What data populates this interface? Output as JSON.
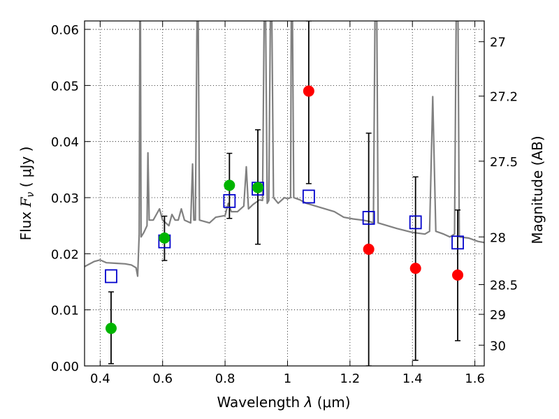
{
  "chart_data": {
    "type": "scatter",
    "xlabel": "Wavelength",
    "xlabel_symbol": "λ",
    "xlabel_unit": "(μm)",
    "ylabel": "Flux",
    "ylabel_symbol": "F",
    "ylabel_subscript": "ν",
    "ylabel_unit": "( μJy )",
    "y2label": "Magnitude (AB)",
    "xlim": [
      0.35,
      1.63
    ],
    "ylim": [
      0.0,
      0.0615
    ],
    "grid": true,
    "x_ticks": [
      0.4,
      0.6,
      0.8,
      1.0,
      1.2,
      1.4,
      1.6
    ],
    "x_tick_labels": [
      "0.4",
      "0.6",
      "0.8",
      "1",
      "1.2",
      "1.4",
      "1.6"
    ],
    "y_ticks": [
      0.0,
      0.01,
      0.02,
      0.03,
      0.04,
      0.05,
      0.06
    ],
    "y_tick_labels": [
      "0.00",
      "0.01",
      "0.02",
      "0.03",
      "0.04",
      "0.05",
      "0.06"
    ],
    "y2_ticks": [
      {
        "label": "27",
        "flux": 0.0578
      },
      {
        "label": "27.2",
        "flux": 0.0481
      },
      {
        "label": "27.5",
        "flux": 0.0365
      },
      {
        "label": "28",
        "flux": 0.023
      },
      {
        "label": "28.5",
        "flux": 0.0145
      },
      {
        "label": "29",
        "flux": 0.0092
      },
      {
        "label": "30",
        "flux": 0.0037
      }
    ],
    "model_spectrum": {
      "color": "#808080",
      "points": [
        [
          0.35,
          0.0177
        ],
        [
          0.38,
          0.0186
        ],
        [
          0.4,
          0.0189
        ],
        [
          0.42,
          0.0184
        ],
        [
          0.45,
          0.0183
        ],
        [
          0.48,
          0.0182
        ],
        [
          0.5,
          0.018
        ],
        [
          0.515,
          0.0175
        ],
        [
          0.52,
          0.016
        ],
        [
          0.525,
          0.0235
        ],
        [
          0.527,
          0.0615
        ],
        [
          0.529,
          0.0615
        ],
        [
          0.531,
          0.023
        ],
        [
          0.54,
          0.0238
        ],
        [
          0.55,
          0.025
        ],
        [
          0.553,
          0.038
        ],
        [
          0.557,
          0.026
        ],
        [
          0.57,
          0.026
        ],
        [
          0.58,
          0.027
        ],
        [
          0.59,
          0.028
        ],
        [
          0.6,
          0.026
        ],
        [
          0.62,
          0.025
        ],
        [
          0.63,
          0.027
        ],
        [
          0.64,
          0.026
        ],
        [
          0.65,
          0.026
        ],
        [
          0.66,
          0.028
        ],
        [
          0.67,
          0.026
        ],
        [
          0.69,
          0.0255
        ],
        [
          0.696,
          0.036
        ],
        [
          0.7,
          0.026
        ],
        [
          0.705,
          0.026
        ],
        [
          0.71,
          0.0615
        ],
        [
          0.714,
          0.0615
        ],
        [
          0.718,
          0.026
        ],
        [
          0.75,
          0.0255
        ],
        [
          0.77,
          0.0265
        ],
        [
          0.8,
          0.0268
        ],
        [
          0.81,
          0.029
        ],
        [
          0.82,
          0.0275
        ],
        [
          0.84,
          0.0275
        ],
        [
          0.86,
          0.0285
        ],
        [
          0.868,
          0.0355
        ],
        [
          0.875,
          0.028
        ],
        [
          0.89,
          0.0288
        ],
        [
          0.9,
          0.0292
        ],
        [
          0.91,
          0.0296
        ],
        [
          0.92,
          0.0295
        ],
        [
          0.925,
          0.0615
        ],
        [
          0.93,
          0.0615
        ],
        [
          0.935,
          0.029
        ],
        [
          0.94,
          0.0295
        ],
        [
          0.945,
          0.0615
        ],
        [
          0.95,
          0.0615
        ],
        [
          0.955,
          0.03
        ],
        [
          0.97,
          0.029
        ],
        [
          0.99,
          0.03
        ],
        [
          1.0,
          0.0298
        ],
        [
          1.01,
          0.03
        ],
        [
          1.012,
          0.0615
        ],
        [
          1.016,
          0.0615
        ],
        [
          1.02,
          0.03
        ],
        [
          1.04,
          0.0296
        ],
        [
          1.06,
          0.029
        ],
        [
          1.09,
          0.0285
        ],
        [
          1.12,
          0.028
        ],
        [
          1.15,
          0.0275
        ],
        [
          1.18,
          0.0265
        ],
        [
          1.21,
          0.0262
        ],
        [
          1.24,
          0.026
        ],
        [
          1.26,
          0.0258
        ],
        [
          1.275,
          0.0255
        ],
        [
          1.28,
          0.0615
        ],
        [
          1.286,
          0.0615
        ],
        [
          1.29,
          0.0255
        ],
        [
          1.32,
          0.025
        ],
        [
          1.35,
          0.0245
        ],
        [
          1.4,
          0.0238
        ],
        [
          1.44,
          0.0235
        ],
        [
          1.455,
          0.024
        ],
        [
          1.465,
          0.048
        ],
        [
          1.475,
          0.024
        ],
        [
          1.5,
          0.0235
        ],
        [
          1.52,
          0.023
        ],
        [
          1.535,
          0.0235
        ],
        [
          1.54,
          0.0615
        ],
        [
          1.546,
          0.0615
        ],
        [
          1.55,
          0.023
        ],
        [
          1.58,
          0.0228
        ],
        [
          1.61,
          0.0222
        ],
        [
          1.63,
          0.022
        ]
      ]
    },
    "model_photometry": {
      "marker": "open-square",
      "color": "#0000cc",
      "points": [
        {
          "x": 0.435,
          "y": 0.016
        },
        {
          "x": 0.606,
          "y": 0.0222
        },
        {
          "x": 0.814,
          "y": 0.0294
        },
        {
          "x": 0.905,
          "y": 0.0316
        },
        {
          "x": 1.068,
          "y": 0.0302
        },
        {
          "x": 1.26,
          "y": 0.0264
        },
        {
          "x": 1.41,
          "y": 0.0256
        },
        {
          "x": 1.545,
          "y": 0.022
        }
      ]
    },
    "detections": {
      "marker": "filled-circle",
      "color": "#00b400",
      "points": [
        {
          "x": 0.435,
          "y": 0.0067,
          "err": [
            0.0004,
            0.0132
          ]
        },
        {
          "x": 0.606,
          "y": 0.0228,
          "err": [
            0.0188,
            0.0267
          ]
        },
        {
          "x": 0.814,
          "y": 0.0322,
          "err": [
            0.0263,
            0.0379
          ]
        },
        {
          "x": 0.905,
          "y": 0.0318,
          "err": [
            0.0217,
            0.0421
          ]
        }
      ]
    },
    "nondetections": {
      "marker": "filled-circle",
      "color": "#ff0000",
      "points": [
        {
          "x": 1.068,
          "y": 0.049,
          "err": [
            0.0325,
            0.0615
          ]
        },
        {
          "x": 1.26,
          "y": 0.0208,
          "err": [
            0.0,
            0.0415
          ]
        },
        {
          "x": 1.41,
          "y": 0.0174,
          "err": [
            0.001,
            0.0337
          ]
        },
        {
          "x": 1.545,
          "y": 0.0162,
          "err": [
            0.0045,
            0.0278
          ]
        }
      ]
    },
    "errorbar_color": "#000000"
  }
}
